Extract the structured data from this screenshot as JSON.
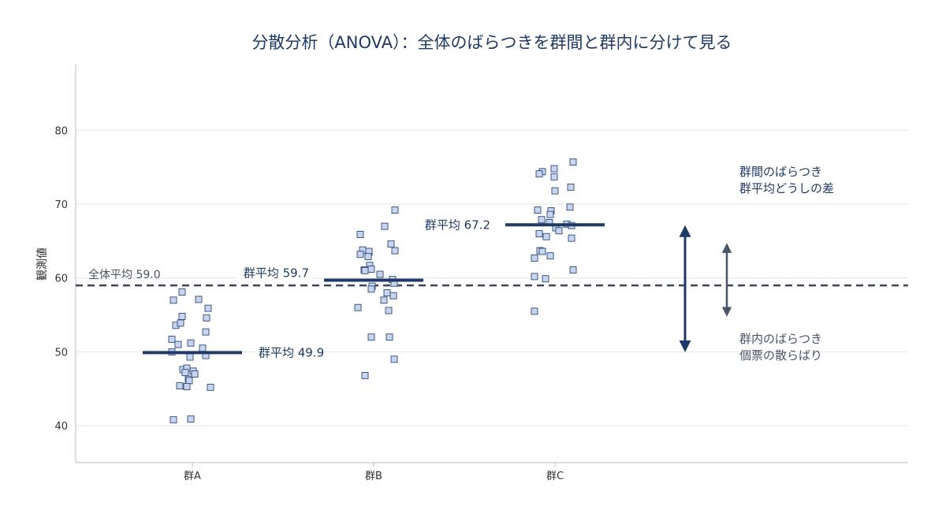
{
  "chart_data": {
    "type": "scatter",
    "title": "分散分析（ANOVA）：全体のばらつきを群間と群内に分けて見る",
    "ylabel": "観測値",
    "ylim": [
      35,
      89
    ],
    "yticks": [
      40,
      50,
      60,
      70,
      80
    ],
    "grid": "horizontal",
    "categories": [
      "群A",
      "群B",
      "群C"
    ],
    "groups": [
      {
        "name": "群A",
        "mean": 49.9,
        "mean_label": "群平均 49.9",
        "values": [
          57.0,
          58.1,
          57.1,
          55.9,
          54.8,
          54.6,
          53.6,
          53.9,
          52.7,
          51.7,
          51.0,
          51.2,
          50.5,
          50.0,
          49.5,
          49.3,
          47.6,
          47.4,
          47.8,
          47.2,
          47.0,
          46.3,
          46.1,
          45.4,
          45.3,
          45.2,
          40.8,
          40.9
        ]
      },
      {
        "name": "群B",
        "mean": 59.7,
        "mean_label": "群平均 59.7",
        "values": [
          69.2,
          67.0,
          65.9,
          64.6,
          63.8,
          63.7,
          63.5,
          63.6,
          63.2,
          62.9,
          61.7,
          61.2,
          61.1,
          61.0,
          60.5,
          59.8,
          59.3,
          58.9,
          58.5,
          58.0,
          57.6,
          57.0,
          56.0,
          55.6,
          52.0,
          52.0,
          49.0,
          46.8
        ]
      },
      {
        "name": "群C",
        "mean": 67.2,
        "mean_label": "群平均 67.2",
        "values": [
          75.7,
          74.8,
          74.4,
          74.1,
          73.7,
          72.3,
          71.8,
          69.6,
          69.2,
          69.1,
          68.6,
          67.9,
          67.5,
          67.3,
          67.1,
          66.8,
          66.4,
          66.0,
          65.6,
          65.4,
          63.7,
          63.6,
          63.0,
          62.7,
          61.1,
          60.2,
          59.9,
          55.5
        ]
      }
    ],
    "overall_mean": 59.0,
    "overall_mean_label": "全体平均 59.0",
    "annotations": {
      "between_line1": "群間のばらつき",
      "between_line2": "群平均どうしの差",
      "within_line1": "群内のばらつき",
      "within_line2": "個票の散らばり"
    }
  },
  "colors": {
    "title": "#1f3a66",
    "mean_line": "#1f3a66",
    "overall_line": "#3d4759",
    "point_fill": "#c9d5ee",
    "point_stroke": "#2b4a7a",
    "arrow_between": "#1f3a66",
    "arrow_within": "#4a5568",
    "grid": "#e6e6e6",
    "axis": "#b9bec8"
  }
}
